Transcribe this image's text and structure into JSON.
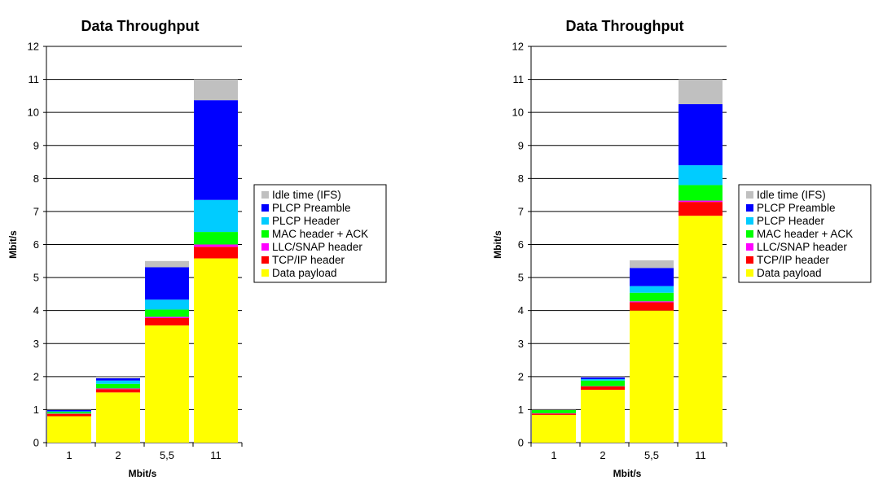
{
  "chart_data": [
    {
      "type": "bar",
      "stacked": true,
      "title": "Data Throughput",
      "xlabel": "Mbit/s",
      "ylabel": "Mbit/s",
      "ylim": [
        0,
        12
      ],
      "yticks": [
        0,
        1,
        2,
        3,
        4,
        5,
        6,
        7,
        8,
        9,
        10,
        11,
        12
      ],
      "grid": true,
      "legend_position": "right",
      "categories": [
        "1",
        "2",
        "5,5",
        "11"
      ],
      "series": [
        {
          "name": "Data payload",
          "color": "#ffff00",
          "values": [
            0.8,
            1.52,
            3.55,
            5.58
          ]
        },
        {
          "name": "TCP/IP header",
          "color": "#ff0000",
          "values": [
            0.07,
            0.1,
            0.22,
            0.35
          ]
        },
        {
          "name": "LLC/SNAP header",
          "color": "#ff00ff",
          "values": [
            0.01,
            0.02,
            0.04,
            0.07
          ]
        },
        {
          "name": "MAC header + ACK",
          "color": "#00ff00",
          "values": [
            0.05,
            0.14,
            0.22,
            0.38
          ]
        },
        {
          "name": "PLCP Header",
          "color": "#00ccff",
          "values": [
            0.02,
            0.1,
            0.3,
            0.97
          ]
        },
        {
          "name": "PLCP Preamble",
          "color": "#0000ff",
          "values": [
            0.04,
            0.07,
            0.98,
            3.02
          ]
        },
        {
          "name": "Idle time (IFS)",
          "color": "#c0c0c0",
          "values": [
            0.01,
            0.05,
            0.19,
            0.63
          ]
        }
      ]
    },
    {
      "type": "bar",
      "stacked": true,
      "title": "Data Throughput",
      "xlabel": "Mbit/s",
      "ylabel": "Mbit/s",
      "ylim": [
        0,
        12
      ],
      "yticks": [
        0,
        1,
        2,
        3,
        4,
        5,
        6,
        7,
        8,
        9,
        10,
        11,
        12
      ],
      "grid": true,
      "legend_position": "right",
      "categories": [
        "1",
        "2",
        "5,5",
        "11"
      ],
      "series": [
        {
          "name": "Data payload",
          "color": "#ffff00",
          "values": [
            0.84,
            1.6,
            4.0,
            6.87
          ]
        },
        {
          "name": "TCP/IP header",
          "color": "#ff0000",
          "values": [
            0.04,
            0.1,
            0.25,
            0.42
          ]
        },
        {
          "name": "LLC/SNAP header",
          "color": "#ff00ff",
          "values": [
            0.01,
            0.01,
            0.03,
            0.04
          ]
        },
        {
          "name": "MAC header + ACK",
          "color": "#00ff00",
          "values": [
            0.1,
            0.17,
            0.26,
            0.47
          ]
        },
        {
          "name": "PLCP Header",
          "color": "#00ccff",
          "values": [
            0.0,
            0.04,
            0.2,
            0.6
          ]
        },
        {
          "name": "PLCP Preamble",
          "color": "#0000ff",
          "values": [
            0.0,
            0.06,
            0.55,
            1.85
          ]
        },
        {
          "name": "Idle time (IFS)",
          "color": "#c0c0c0",
          "values": [
            0.01,
            0.02,
            0.23,
            0.75
          ]
        }
      ]
    }
  ],
  "legend_order": [
    "Idle time (IFS)",
    "PLCP Preamble",
    "PLCP Header",
    "MAC header + ACK",
    "LLC/SNAP header",
    "TCP/IP header",
    "Data payload"
  ]
}
